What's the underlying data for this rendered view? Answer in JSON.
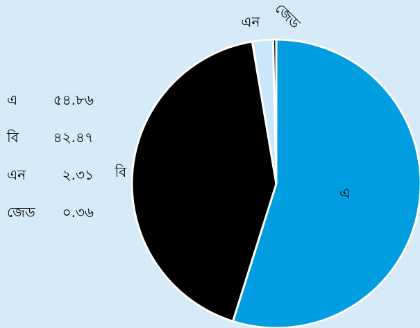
{
  "chart_data": {
    "type": "pie",
    "categories": [
      "এ",
      "বি",
      "এন",
      "জেড"
    ],
    "values": [
      54.86,
      42.47,
      2.31,
      0.36
    ],
    "value_labels": [
      "৫৪.৮৬",
      "৪২.৪৭",
      "২.৩১",
      "০.৩৬"
    ],
    "colors": [
      "#009ee0",
      "#000000",
      "#c9e6fb",
      "#111111"
    ],
    "start": "12 o'clock",
    "direction": "clockwise",
    "legend_position": "left"
  }
}
